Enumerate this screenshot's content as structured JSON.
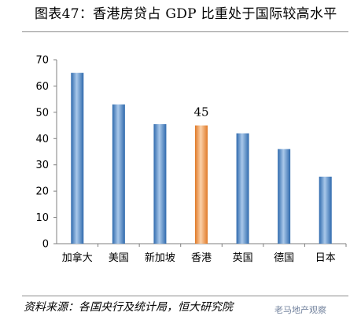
{
  "title": "图表47：香港房贷占 GDP 比重处于国际较高水平",
  "source": "资料来源：各国央行及统计局，恒大研究院",
  "watermark": "老马地产观察",
  "chart_data": {
    "type": "bar",
    "categories": [
      "加拿大",
      "美国",
      "新加坡",
      "香港",
      "英国",
      "德国",
      "日本"
    ],
    "values": [
      65,
      53,
      45.5,
      45,
      42,
      36,
      25.5
    ],
    "highlight_index": 3,
    "data_labels": [
      {
        "index": 3,
        "text": "45"
      }
    ],
    "ylim": [
      0,
      70
    ],
    "yticks": [
      0,
      10,
      20,
      30,
      40,
      50,
      60,
      70
    ],
    "grid": false,
    "legend": "none",
    "colors": {
      "bar": "#4a86c8",
      "bar_light": "#a9c8ea",
      "bar_dark": "#2f6aad",
      "highlight": "#f39a4e",
      "highlight_light": "#fbd1a9",
      "highlight_dark": "#e07a28",
      "axis": "#7f7f7f"
    }
  }
}
